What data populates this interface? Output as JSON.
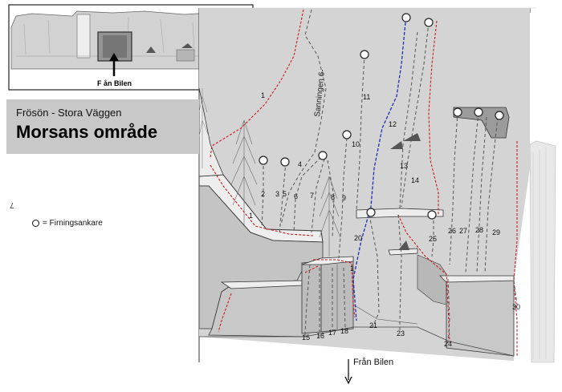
{
  "header": {
    "subtitle": "Frösön - Stora Väggen",
    "title": "Morsans område"
  },
  "legend": {
    "label": "= Firningsankare",
    "icon": "anchor-circle-icon"
  },
  "page_marker": "7",
  "inset": {
    "label": "F ån Bilen"
  },
  "bottom": {
    "label": "Från Bilen",
    "icon": "arrow-down-icon"
  },
  "colors": {
    "trad_route": "#cc1b1b",
    "blue_route": "#1f2fb5",
    "standard_route": "#555555",
    "rock": "#d4d4d4"
  },
  "route_labels": [
    {
      "id": "1",
      "text": "1"
    },
    {
      "id": "1b",
      "text": "1"
    },
    {
      "id": "1c",
      "text": "1"
    },
    {
      "id": "2",
      "text": "2"
    },
    {
      "id": "3",
      "text": "3"
    },
    {
      "id": "4",
      "text": "4"
    },
    {
      "id": "5",
      "text": "5"
    },
    {
      "id": "6",
      "text": "6"
    },
    {
      "id": "7",
      "text": "7"
    },
    {
      "id": "8",
      "text": "8"
    },
    {
      "id": "9",
      "text": "9"
    },
    {
      "id": "10",
      "text": "10"
    },
    {
      "id": "11",
      "text": "11"
    },
    {
      "id": "12",
      "text": "12"
    },
    {
      "id": "13",
      "text": "13"
    },
    {
      "id": "14",
      "text": "14"
    },
    {
      "id": "15",
      "text": "15"
    },
    {
      "id": "16",
      "text": "16"
    },
    {
      "id": "17",
      "text": "17"
    },
    {
      "id": "18",
      "text": "18"
    },
    {
      "id": "20",
      "text": "20"
    },
    {
      "id": "21",
      "text": "21"
    },
    {
      "id": "23",
      "text": "23"
    },
    {
      "id": "24",
      "text": "24"
    },
    {
      "id": "25",
      "text": "25"
    },
    {
      "id": "26",
      "text": "26"
    },
    {
      "id": "27",
      "text": "27"
    },
    {
      "id": "28",
      "text": "28"
    },
    {
      "id": "29",
      "text": "29"
    },
    {
      "id": "30",
      "text": "30"
    }
  ],
  "route_name_label": "Sanningen 6-"
}
